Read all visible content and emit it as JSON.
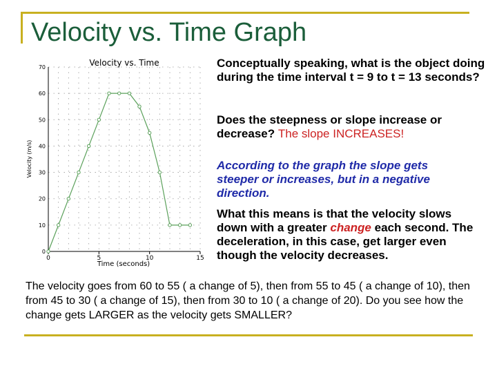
{
  "slide": {
    "title": "Velocity vs. Time Graph",
    "q1": "Conceptually speaking, what is the object doing during the time interval t = 9 to t = 13 seconds?",
    "q2": "Does the steepness or slope increase or decrease?",
    "q2_answer": "The slope INCREASES!",
    "blue_text": "According to the graph the slope gets steeper or increases, but in a negative direction.",
    "meaning_pre": "What this means is that the velocity slows down with a greater ",
    "meaning_word": "change",
    "meaning_post": " each second. The deceleration, in this case, get larger even though the velocity decreases.",
    "bottom": "The velocity goes from 60 to 55 ( a change of 5), then from 55 to 45 ( a change of 10), then from 45 to 30 ( a change of 15), then from 30 to 10 ( a change of 20). Do you see how the change gets LARGER as the velocity gets SMALLER?"
  },
  "colors": {
    "title": "#1b5e3a",
    "accent_line": "#c8b020",
    "answer": "#cc2222",
    "blue_text": "#1f2aa8",
    "series": "#5aa05a"
  },
  "chart_data": {
    "type": "line",
    "title": "Velocity vs. Time",
    "xlabel": "Time (seconds)",
    "ylabel": "Velocity (m/s)",
    "xlim": [
      0,
      15
    ],
    "ylim": [
      0,
      70
    ],
    "xticks": [
      0,
      5,
      10,
      15
    ],
    "yticks": [
      0,
      10,
      20,
      30,
      40,
      50,
      60,
      70
    ],
    "grid": true,
    "series": [
      {
        "x": [
          0,
          1,
          2,
          3,
          4,
          5,
          6,
          7,
          8,
          9,
          10,
          11,
          12,
          13,
          14
        ],
        "y": [
          0,
          10,
          20,
          30,
          40,
          50,
          60,
          60,
          60,
          55,
          45,
          30,
          10,
          10,
          10
        ]
      }
    ]
  }
}
